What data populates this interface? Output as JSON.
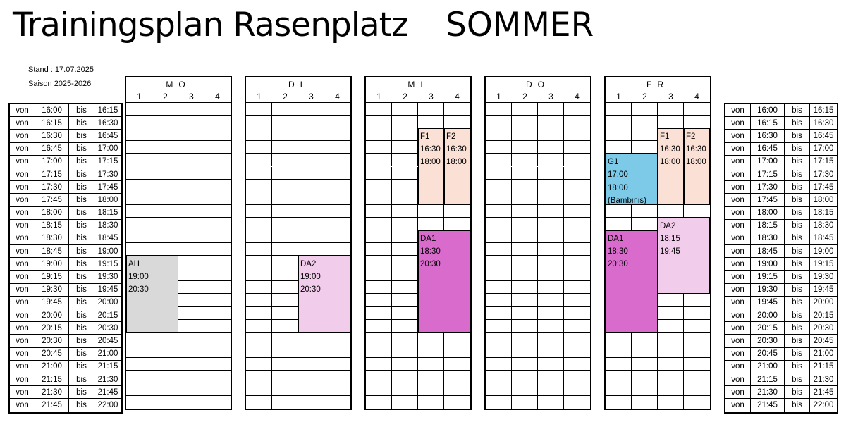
{
  "header": {
    "title": "Trainingsplan Rasenplatz",
    "season_label": "SOMMER",
    "stand": "Stand : 17.07.2025",
    "saison": "Saison 2025-2026"
  },
  "time_labels": {
    "from_word": "von",
    "to_word": "bis"
  },
  "time_slots": [
    {
      "from": "16:00",
      "to": "16:15"
    },
    {
      "from": "16:15",
      "to": "16:30"
    },
    {
      "from": "16:30",
      "to": "16:45"
    },
    {
      "from": "16:45",
      "to": "17:00"
    },
    {
      "from": "17:00",
      "to": "17:15"
    },
    {
      "from": "17:15",
      "to": "17:30"
    },
    {
      "from": "17:30",
      "to": "17:45"
    },
    {
      "from": "17:45",
      "to": "18:00"
    },
    {
      "from": "18:00",
      "to": "18:15"
    },
    {
      "from": "18:15",
      "to": "18:30"
    },
    {
      "from": "18:30",
      "to": "18:45"
    },
    {
      "from": "18:45",
      "to": "19:00"
    },
    {
      "from": "19:00",
      "to": "19:15"
    },
    {
      "from": "19:15",
      "to": "19:30"
    },
    {
      "from": "19:30",
      "to": "19:45"
    },
    {
      "from": "19:45",
      "to": "20:00"
    },
    {
      "from": "20:00",
      "to": "20:15"
    },
    {
      "from": "20:15",
      "to": "20:30"
    },
    {
      "from": "20:30",
      "to": "20:45"
    },
    {
      "from": "20:45",
      "to": "21:00"
    },
    {
      "from": "21:00",
      "to": "21:15"
    },
    {
      "from": "21:15",
      "to": "21:30"
    },
    {
      "from": "21:30",
      "to": "21:45"
    },
    {
      "from": "21:45",
      "to": "22:00"
    }
  ],
  "courts": [
    "1",
    "2",
    "3",
    "4"
  ],
  "days": [
    {
      "name": "MO",
      "sessions": [
        {
          "team": "AH",
          "start": "19:00",
          "end": "20:30",
          "court_from": 1,
          "court_to": 2,
          "color": "#d9d9d9"
        }
      ]
    },
    {
      "name": "DI",
      "sessions": [
        {
          "team": "DA2",
          "start": "19:00",
          "end": "20:30",
          "court_from": 3,
          "court_to": 4,
          "color": "#f2cceb"
        }
      ]
    },
    {
      "name": "MI",
      "sessions": [
        {
          "team": "F1",
          "start": "16:30",
          "end": "18:00",
          "court_from": 3,
          "court_to": 3,
          "color": "#fbe0d5"
        },
        {
          "team": "F2",
          "start": "16:30",
          "end": "18:00",
          "court_from": 4,
          "court_to": 4,
          "color": "#fbe0d5"
        },
        {
          "team": "DA1",
          "start": "18:30",
          "end": "20:30",
          "court_from": 3,
          "court_to": 4,
          "color": "#d96bcc"
        }
      ]
    },
    {
      "name": "DO",
      "sessions": []
    },
    {
      "name": "FR",
      "sessions": [
        {
          "team": "F1",
          "start": "16:30",
          "end": "18:00",
          "court_from": 3,
          "court_to": 3,
          "color": "#fbe0d5"
        },
        {
          "team": "F2",
          "start": "16:30",
          "end": "18:00",
          "court_from": 4,
          "court_to": 4,
          "color": "#fbe0d5"
        },
        {
          "team": "G1",
          "start": "17:00",
          "end": "18:00",
          "note": "(Bambinis)",
          "court_from": 1,
          "court_to": 2,
          "color": "#7dcae8"
        },
        {
          "team": "DA2",
          "start": "18:15",
          "end": "19:45",
          "court_from": 3,
          "court_to": 4,
          "color": "#f2cceb"
        },
        {
          "team": "DA1",
          "start": "18:30",
          "end": "20:30",
          "court_from": 1,
          "court_to": 2,
          "color": "#d96bcc"
        }
      ]
    }
  ]
}
